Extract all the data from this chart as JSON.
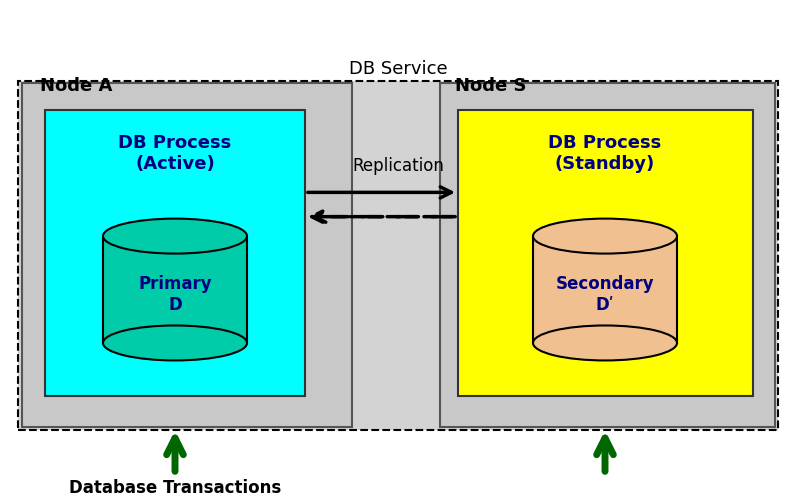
{
  "bg_color": "#f0f0f0",
  "outer_box_color": "#d3d3d3",
  "node_a_label": "Node A",
  "node_s_label": "Node S",
  "db_service_label": "DB Service",
  "replication_label": "Replication",
  "db_process_active_label": "DB Process\n(Active)",
  "db_process_standby_label": "DB Process\n(Standby)",
  "primary_d_label": "Primary\nD",
  "secondary_d_label": "Secondary\nDʹ",
  "db_transactions_label": "Database Transactions",
  "node_box_color": "#c8c8c8",
  "process_active_color": "#00ffff",
  "process_standby_color": "#ffff00",
  "primary_db_color": "#00ccaa",
  "secondary_db_color": "#f0c090",
  "arrow_color": "#006600",
  "text_color": "#000080"
}
